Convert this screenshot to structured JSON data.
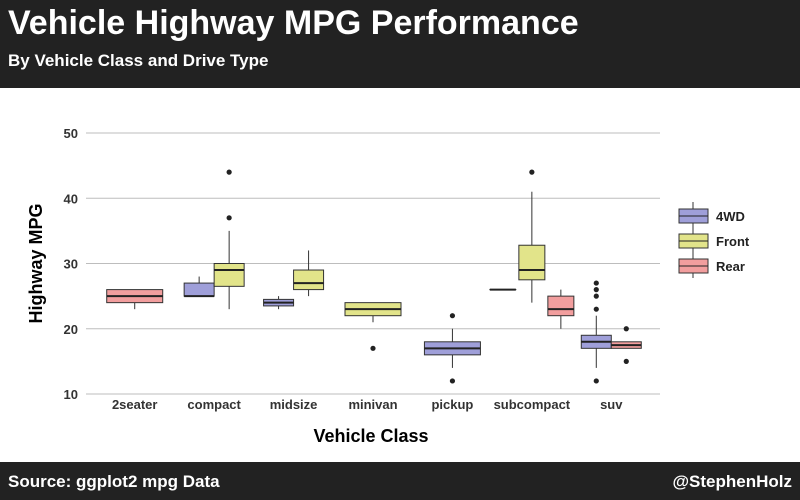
{
  "header": {
    "title": "Vehicle Highway MPG Performance",
    "subtitle": "By Vehicle Class and Drive Type"
  },
  "footer": {
    "source": "Source: ggplot2 mpg Data",
    "handle": "@StephenHolz"
  },
  "chart_data": {
    "type": "boxplot",
    "xlabel": "Vehicle Class",
    "ylabel": "Highway MPG",
    "ylim": [
      10,
      50
    ],
    "yticks": [
      10,
      20,
      30,
      40,
      50
    ],
    "grid": true,
    "legend_position": "right",
    "categories": [
      "2seater",
      "compact",
      "midsize",
      "minivan",
      "pickup",
      "subcompact",
      "suv"
    ],
    "series": [
      {
        "name": "4WD",
        "color": "#9f9fd9",
        "boxes": [
          {
            "category": "compact",
            "min": 25,
            "q1": 25,
            "median": 25,
            "q3": 27,
            "max": 28,
            "outliers": []
          },
          {
            "category": "midsize",
            "min": 23,
            "q1": 23.5,
            "median": 24,
            "q3": 24.5,
            "max": 25,
            "outliers": []
          },
          {
            "category": "pickup",
            "min": 14,
            "q1": 16,
            "median": 17,
            "q3": 18,
            "max": 20,
            "outliers": [
              12,
              22
            ]
          },
          {
            "category": "subcompact",
            "min": 26,
            "q1": 26,
            "median": 26,
            "q3": 26,
            "max": 26,
            "outliers": []
          },
          {
            "category": "suv",
            "min": 14,
            "q1": 17,
            "median": 18,
            "q3": 19,
            "max": 22,
            "outliers": [
              12,
              23,
              25,
              26,
              27
            ]
          }
        ]
      },
      {
        "name": "Front",
        "color": "#e2e48a",
        "boxes": [
          {
            "category": "compact",
            "min": 23,
            "q1": 26.5,
            "median": 29,
            "q3": 30,
            "max": 35,
            "outliers": [
              37,
              44
            ]
          },
          {
            "category": "midsize",
            "min": 25,
            "q1": 26,
            "median": 27,
            "q3": 29,
            "max": 32,
            "outliers": []
          },
          {
            "category": "minivan",
            "min": 21,
            "q1": 22,
            "median": 23,
            "q3": 24,
            "max": 24,
            "outliers": [
              17
            ]
          },
          {
            "category": "subcompact",
            "min": 24,
            "q1": 27.5,
            "median": 29,
            "q3": 32.8,
            "max": 41,
            "outliers": [
              44
            ]
          }
        ]
      },
      {
        "name": "Rear",
        "color": "#f29e9e",
        "boxes": [
          {
            "category": "2seater",
            "min": 23,
            "q1": 24,
            "median": 25,
            "q3": 26,
            "max": 26,
            "outliers": []
          },
          {
            "category": "subcompact",
            "min": 20,
            "q1": 22,
            "median": 23,
            "q3": 25,
            "max": 26,
            "outliers": []
          },
          {
            "category": "suv",
            "min": 17,
            "q1": 17,
            "median": 17.5,
            "q3": 18,
            "max": 18,
            "outliers": [
              15,
              20
            ]
          }
        ]
      }
    ]
  }
}
